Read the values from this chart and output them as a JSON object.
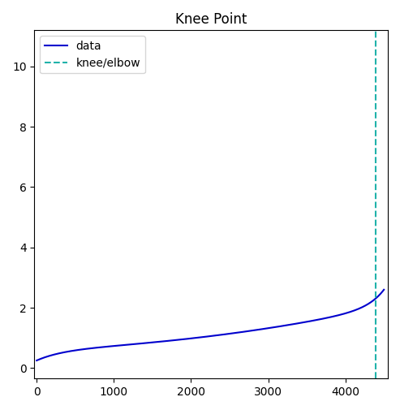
{
  "title": "Knee Point",
  "data_color": "#0000cd",
  "knee_color": "#20b2aa",
  "data_label": "data",
  "knee_label": "knee/elbow",
  "knee_x": 4395,
  "n_points": 4500,
  "xlim": [
    -30,
    4550
  ],
  "ylim": [
    -0.35,
    11.2
  ],
  "data_linewidth": 1.5,
  "knee_linewidth": 1.5,
  "figsize": [
    4.93,
    5.05
  ],
  "dpi": 100
}
